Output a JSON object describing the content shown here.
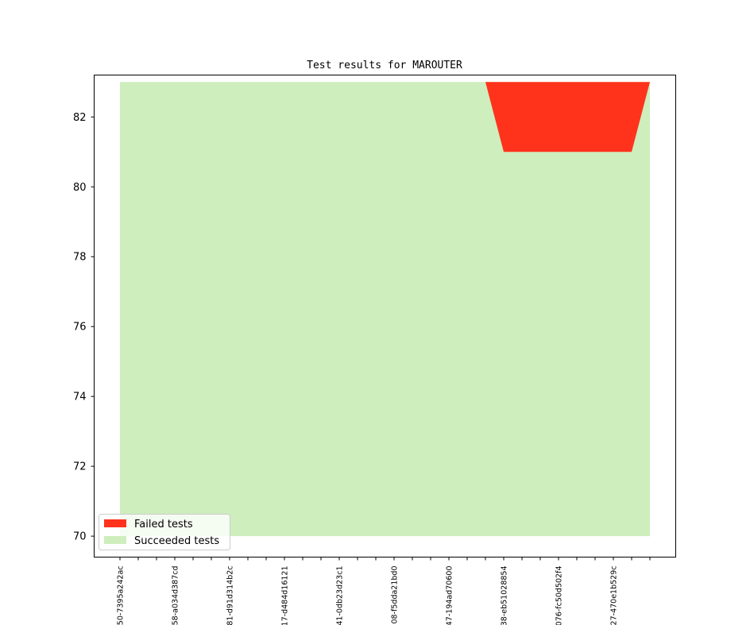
{
  "chart_data": {
    "type": "area",
    "title": "Test results for MAROUTER",
    "xlabel": "",
    "ylabel": "",
    "ylim": [
      69.4,
      83.2
    ],
    "yticks": [
      70,
      72,
      74,
      76,
      78,
      80,
      82
    ],
    "x_labels": [
      "50-7395a242ac",
      "58-a034d387cd",
      "81-d91d314b2c",
      "17-d484d16121",
      "41-0db23d23c1",
      "08-f5dda21bd0",
      "47-194ad70600",
      "38-eb51028854",
      "076-fc50d502f4",
      "27-470e1b529c"
    ],
    "grid": false,
    "legend": "lower-left",
    "series": [
      {
        "name": "Failed tests",
        "color": "#ff331c",
        "x": [
          0,
          20,
          21,
          25,
          26,
          28,
          29
        ],
        "lower": [
          83,
          83,
          81,
          81,
          81,
          81,
          83
        ],
        "upper": [
          83,
          83,
          83,
          83,
          83,
          83,
          83
        ]
      },
      {
        "name": "Succeeded tests",
        "color": "#ceeebd",
        "x": [
          0,
          29
        ],
        "lower": [
          70,
          70
        ],
        "upper": [
          83,
          83
        ]
      }
    ]
  }
}
